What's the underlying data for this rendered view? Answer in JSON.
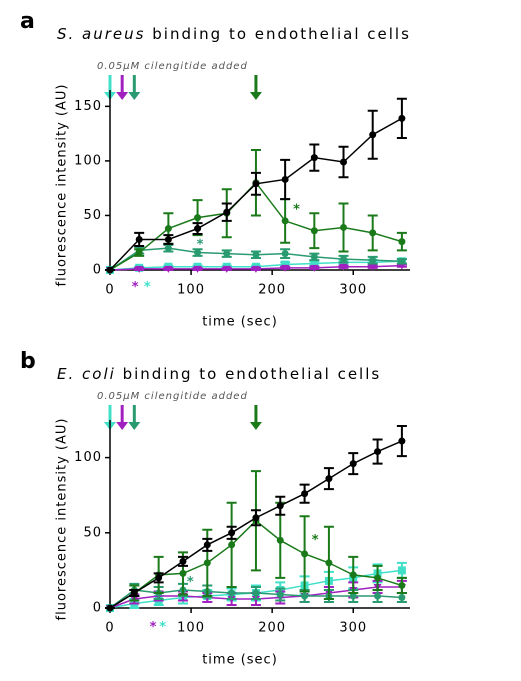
{
  "chart_data": [
    {
      "type": "line",
      "panel": "a",
      "title_italic": "S. aureus",
      "title": "binding to endothelial cells",
      "x_label": "time (sec)",
      "y_label": "fluorescence intensity (AU)",
      "arrow_label": "0.05µM cilengitide added",
      "arrows": [
        {
          "x": 0,
          "color": "#40e0c8"
        },
        {
          "x": 15,
          "color": "#a020c0"
        },
        {
          "x": 30,
          "color": "#2a9a70"
        },
        {
          "x": 180,
          "color": "#1a7a1a"
        }
      ],
      "xlim": [
        0,
        370
      ],
      "xticks": [
        0,
        100,
        200,
        300
      ],
      "ylim": [
        0,
        165
      ],
      "yticks": [
        0,
        50,
        100,
        150
      ],
      "x": [
        0,
        36,
        72,
        108,
        144,
        180,
        216,
        252,
        288,
        324,
        360
      ],
      "series": [
        {
          "color": "#40e0c8",
          "marker": "square",
          "values": [
            0,
            2,
            3,
            3,
            3,
            3,
            5,
            6,
            7,
            7,
            8
          ],
          "errors": [
            0,
            1,
            1,
            1,
            1,
            1,
            2,
            2,
            2,
            2,
            2
          ]
        },
        {
          "color": "#a020c0",
          "marker": "triangle",
          "values": [
            0,
            1,
            1,
            1,
            1,
            1,
            2,
            2,
            3,
            3,
            4
          ],
          "errors": [
            0,
            1,
            1,
            1,
            1,
            1,
            1,
            1,
            1,
            1,
            1
          ]
        },
        {
          "color": "#2a9a70",
          "marker": "circle",
          "values": [
            0,
            18,
            20,
            16,
            15,
            14,
            15,
            12,
            10,
            9,
            8
          ],
          "errors": [
            0,
            3,
            3,
            3,
            3,
            3,
            4,
            3,
            3,
            3,
            2
          ]
        },
        {
          "color": "#1a7a1a",
          "marker": "circle",
          "values": [
            0,
            16,
            38,
            48,
            52,
            80,
            45,
            36,
            39,
            34,
            26
          ],
          "errors": [
            0,
            3,
            14,
            16,
            22,
            30,
            20,
            16,
            22,
            16,
            8
          ]
        },
        {
          "color": "#000000",
          "marker": "circle",
          "values": [
            0,
            28,
            28,
            38,
            53,
            79,
            83,
            103,
            99,
            124,
            139
          ],
          "errors": [
            0,
            6,
            4,
            5,
            8,
            10,
            18,
            12,
            14,
            22,
            18
          ]
        }
      ],
      "annotations": [
        {
          "text": "*",
          "x": 230,
          "y": 55,
          "color": "#1a7a1a"
        },
        {
          "text": "*",
          "x": 111,
          "y": 23,
          "color": "#2a9a70"
        },
        {
          "text": "*",
          "x": 31,
          "y": -16,
          "color": "#a020c0"
        },
        {
          "text": "*",
          "x": 46,
          "y": -16,
          "color": "#40e0c8"
        }
      ]
    },
    {
      "type": "line",
      "panel": "b",
      "title_italic": "E. coli",
      "title": "binding to endothelial cells",
      "x_label": "time (sec)",
      "y_label": "fluorescence intensity (AU)",
      "arrow_label": "0.05µM cilengitide added",
      "arrows": [
        {
          "x": 0,
          "color": "#40e0c8"
        },
        {
          "x": 15,
          "color": "#a020c0"
        },
        {
          "x": 30,
          "color": "#2a9a70"
        },
        {
          "x": 180,
          "color": "#1a7a1a"
        }
      ],
      "xlim": [
        0,
        370
      ],
      "xticks": [
        0,
        100,
        200,
        300
      ],
      "ylim": [
        0,
        125
      ],
      "yticks": [
        0,
        50,
        100
      ],
      "x": [
        0,
        30,
        60,
        90,
        120,
        150,
        180,
        210,
        240,
        270,
        300,
        330,
        360
      ],
      "series": [
        {
          "color": "#40e0c8",
          "marker": "square",
          "values": [
            0,
            3,
            5,
            7,
            8,
            9,
            10,
            12,
            15,
            18,
            20,
            23,
            25
          ],
          "errors": [
            0,
            3,
            3,
            4,
            4,
            4,
            5,
            5,
            6,
            6,
            7,
            6,
            5
          ]
        },
        {
          "color": "#a020c0",
          "marker": "triangle",
          "values": [
            0,
            6,
            8,
            8,
            7,
            6,
            6,
            7,
            8,
            10,
            12,
            14,
            14
          ],
          "errors": [
            0,
            3,
            3,
            3,
            3,
            4,
            4,
            4,
            4,
            4,
            5,
            4,
            4
          ]
        },
        {
          "color": "#2a9a70",
          "marker": "circle",
          "values": [
            0,
            12,
            10,
            12,
            11,
            10,
            10,
            9,
            8,
            8,
            8,
            8,
            7
          ],
          "errors": [
            0,
            4,
            4,
            4,
            4,
            4,
            4,
            4,
            4,
            4,
            4,
            4,
            3
          ]
        },
        {
          "color": "#1a7a1a",
          "marker": "circle",
          "values": [
            0,
            10,
            22,
            23,
            30,
            42,
            58,
            45,
            36,
            30,
            22,
            20,
            15
          ],
          "errors": [
            0,
            5,
            12,
            14,
            22,
            28,
            33,
            25,
            25,
            24,
            12,
            8,
            5
          ]
        },
        {
          "color": "#000000",
          "marker": "circle",
          "values": [
            0,
            10,
            20,
            31,
            42,
            50,
            60,
            68,
            76,
            86,
            96,
            104,
            111
          ],
          "errors": [
            0,
            2,
            3,
            3,
            4,
            4,
            5,
            6,
            6,
            7,
            7,
            8,
            10
          ]
        }
      ],
      "annotations": [
        {
          "text": "*",
          "x": 253,
          "y": 45,
          "color": "#1a7a1a"
        },
        {
          "text": "*",
          "x": 99,
          "y": 17,
          "color": "#2a9a70"
        },
        {
          "text": "*",
          "x": 53,
          "y": -13,
          "color": "#a020c0"
        },
        {
          "text": "*",
          "x": 65,
          "y": -13,
          "color": "#40e0c8"
        }
      ]
    }
  ]
}
